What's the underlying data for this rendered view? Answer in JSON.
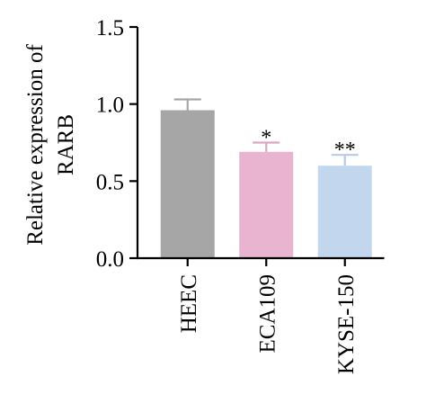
{
  "chart_data": {
    "type": "bar",
    "title": "",
    "xlabel": "",
    "ylabel_lines": [
      "Relative expression of",
      "RARB"
    ],
    "categories": [
      "HEEC",
      "ECA109",
      "KYSE-150"
    ],
    "values": [
      0.96,
      0.69,
      0.6
    ],
    "errors": [
      0.07,
      0.06,
      0.07
    ],
    "annotations": [
      "",
      "*",
      "**"
    ],
    "ylim": [
      0,
      1.5
    ],
    "yticks": [
      0.0,
      0.5,
      1.0,
      1.5
    ],
    "ytick_labels": [
      "0.0",
      "0.5",
      "1.0",
      "1.5"
    ],
    "grid": false,
    "colors": {
      "bars": [
        "#a6a6a6",
        "#e8b4cf",
        "#c2d6ee"
      ],
      "error_bars": [
        "#a6a6a6",
        "#dca6c4",
        "#b4cbe9"
      ],
      "axis": "#000000"
    }
  }
}
